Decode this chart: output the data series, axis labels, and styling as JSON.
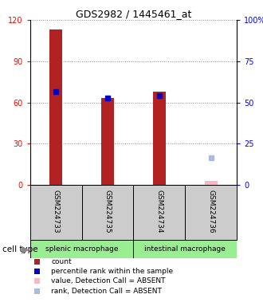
{
  "title": "GDS2982 / 1445461_at",
  "samples": [
    "GSM224733",
    "GSM224735",
    "GSM224734",
    "GSM224736"
  ],
  "cell_type_labels": [
    "splenic macrophage",
    "intestinal macrophage"
  ],
  "count_values": [
    113,
    63,
    68,
    3
  ],
  "percentile_values": [
    68,
    63,
    65,
    null
  ],
  "absent_value": [
    null,
    null,
    null,
    3
  ],
  "absent_rank": [
    null,
    null,
    null,
    20
  ],
  "left_ylim": [
    0,
    120
  ],
  "right_ylim": [
    0,
    100
  ],
  "left_yticks": [
    0,
    30,
    60,
    90,
    120
  ],
  "right_yticks": [
    0,
    25,
    50,
    75,
    100
  ],
  "right_yticklabels": [
    "0",
    "25",
    "50",
    "75",
    "100%"
  ],
  "bar_color_present": "#B22222",
  "bar_color_absent": "#FFB6C1",
  "percentile_color_present": "#0000CC",
  "percentile_color_absent": "#AABBDD",
  "cell_type_bg": "#98EE90",
  "sample_area_bg": "#CCCCCC",
  "legend_items": [
    {
      "color": "#B22222",
      "label": "count"
    },
    {
      "color": "#0000CC",
      "label": "percentile rank within the sample"
    },
    {
      "color": "#FFB6C1",
      "label": "value, Detection Call = ABSENT"
    },
    {
      "color": "#AABBDD",
      "label": "rank, Detection Call = ABSENT"
    }
  ]
}
